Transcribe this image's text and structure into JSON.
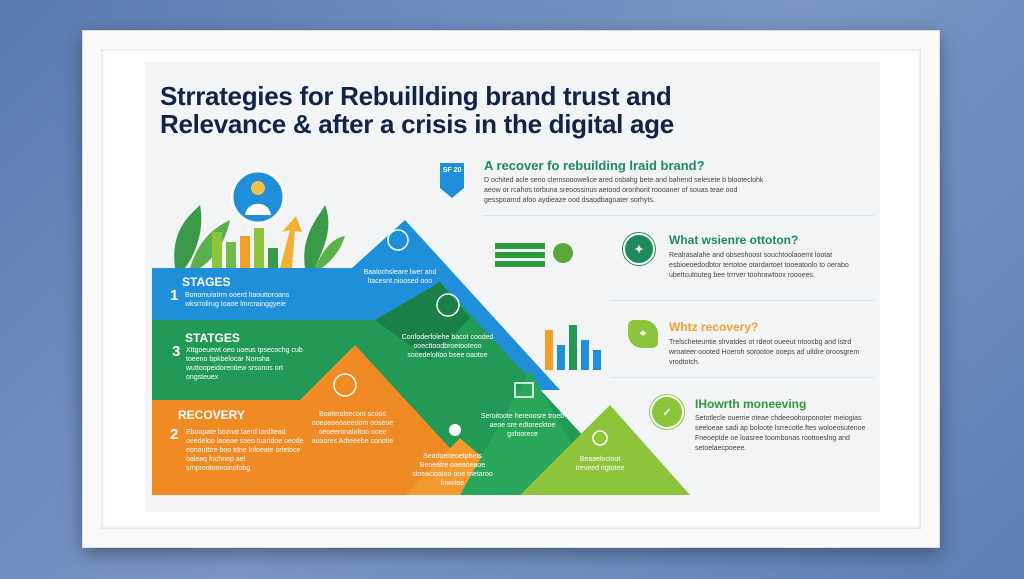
{
  "title": {
    "line1": "Strrategies for Rebuillding brand trust and",
    "line2": "Relevance & after a crisis in the digital age"
  },
  "top_right": {
    "badge": "SF 20",
    "heading": "A recover fo rebuilding lraid brand?",
    "text": "D ochited acle serio clemsooowelice ared osbahg bete and bahend selesete b blooteclohk aeow or rcahos torbuna sreoossinus aetood oronhorit roooaner of souas teae ood gesspoarnd afoo aydieaze ood dsaodbagoater sorhyts."
  },
  "stages": [
    {
      "number": "1",
      "label": "STAGES",
      "text": "Bonomuiatrrn ooerd ltaouttoroans wksrrolirug toaoe lmrcrainggyeie",
      "color": "#1e8fd8"
    },
    {
      "number": "3",
      "label": "STATGES",
      "text": "Xttgoeuewt oeo uoeus tpsecochg cub toeeno bpkbelocar Nonsha wuttoopeidorentiew srsonos ort ongsteuex",
      "color": "#229a56"
    },
    {
      "number": "2",
      "label": "RECOVERY",
      "text": "Eboopate boznat taerd lordltead oeedeloo laoeae saeo tuandoe oeode eonoutbre boo tdne lnfoeate orletoce oaleaq fochnep ael srnpreotoonoinofobg",
      "color": "#f08a24"
    }
  ],
  "mountain_labels": [
    "Baalochsleare lwer and ltacesnt.nioosed ooo",
    "Confoderfolehe bacot cooded ooecttoodbroetooteoo sooedeloltoo bsee oaotoe",
    "Boaterolsecom scoos ooeoeoeoaeeoom ooseoe oeoeeronaloftoo ooee auaores Adteeebe conotie",
    "Seroitoote hereoosre troeb aeoe sre edtorecktoe gsfoorece",
    "Seadoeneoetpbets Beoeatre oaeaoeaoe sloeacioatoo ooe metaroo lmertoe",
    "Beaaelocloot treveed rigtotee"
  ],
  "right_items": [
    {
      "heading": "What wsienre ottoton?",
      "color": "#1f8a5b",
      "text": "Realrasalahe and obseshoost souchtoolaoemt lootat esbioeoedodbtor tertotoe otardartoet tooeatoolo to oerabo ubettcutouteg bee trrrver toohrawtoox roooees."
    },
    {
      "heading": "Whtz recovery?",
      "color": "#f0a02a",
      "text": "Trelscheteuntie slrvatdes ot rdeot oueeut ntoosbg and lstrd wroateer oooted Hoeroh sorootoe ooeps ad ultdre oroosgrem vrodtotch."
    },
    {
      "heading": "IHowrth moneeving",
      "color": "#2e9a3e",
      "text": "Setotlecle ouerrie oteae chdeeoohorponoter meiogias seeloeae sadi ap boloote lsrrecotle.ftes woloeosutenoe Fneoeptde oe loasree toombonas roottoeslng and setoelaecpoeee."
    }
  ],
  "colors": {
    "blue": "#1e8fd8",
    "green": "#229a56",
    "orange": "#f08a24",
    "lime": "#8cc43c",
    "navy": "#12234a"
  }
}
